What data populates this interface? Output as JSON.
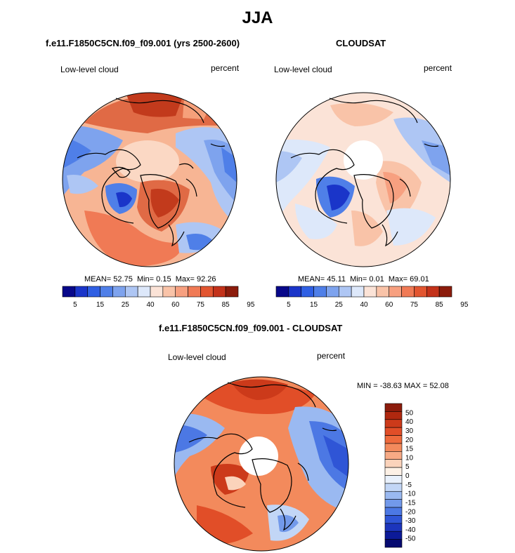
{
  "figure": {
    "title": "JJA"
  },
  "panels": [
    {
      "title": "f.e11.F1850C5CN.f09_f09.001 (yrs 2500-2600)",
      "left_label": "Low-level cloud",
      "right_label": "percent",
      "stats": {
        "mean_label": "MEAN=",
        "mean": "52.75",
        "min_label": "Min=",
        "min": "0.15",
        "max_label": "Max=",
        "max": "92.26"
      },
      "colorbar": {
        "colors": [
          "#08088a",
          "#1a35c9",
          "#2f5fe3",
          "#4f7fe8",
          "#7ea3ee",
          "#aec6f4",
          "#dde8fa",
          "#fbe3d7",
          "#f9c3a8",
          "#f7a080",
          "#f07a55",
          "#e25530",
          "#c3321a",
          "#8c1c0c"
        ],
        "tick_labels": [
          "5",
          "15",
          "25",
          "40",
          "60",
          "75",
          "85",
          "95"
        ]
      }
    },
    {
      "title": "CLOUDSAT",
      "left_label": "Low-level cloud",
      "right_label": "percent",
      "stats": {
        "mean_label": "MEAN=",
        "mean": "45.11",
        "min_label": "Min=",
        "min": "0.01",
        "max_label": "Max=",
        "max": "69.01"
      },
      "colorbar": {
        "colors": [
          "#08088a",
          "#1a35c9",
          "#2f5fe3",
          "#4f7fe8",
          "#7ea3ee",
          "#aec6f4",
          "#dde8fa",
          "#fbe3d7",
          "#f9c3a8",
          "#f7a080",
          "#f07a55",
          "#e25530",
          "#c3321a",
          "#8c1c0c"
        ],
        "tick_labels": [
          "5",
          "15",
          "25",
          "40",
          "60",
          "75",
          "85",
          "95"
        ]
      }
    },
    {
      "title": "f.e11.F1850C5CN.f09_f09.001 - CLOUDSAT",
      "left_label": "Low-level cloud",
      "right_label": "percent",
      "stats_text": "MIN = -38.63  MAX =  52.08",
      "colorbar": {
        "colors": [
          "#8c1c0c",
          "#b0280f",
          "#cc3a1a",
          "#e14e28",
          "#ee6a3c",
          "#f38a5c",
          "#f7aa85",
          "#fbd3bb",
          "#fdf1e6",
          "#e9f1fc",
          "#c2d6f6",
          "#9ab9f1",
          "#7299ea",
          "#4c78e4",
          "#2f55d6",
          "#1c35bc",
          "#0c1a98",
          "#060a70"
        ],
        "tick_labels": [
          "50",
          "40",
          "30",
          "20",
          "15",
          "10",
          "5",
          "0",
          "-5",
          "-10",
          "-15",
          "-20",
          "-30",
          "-40",
          "-50"
        ]
      }
    }
  ]
}
